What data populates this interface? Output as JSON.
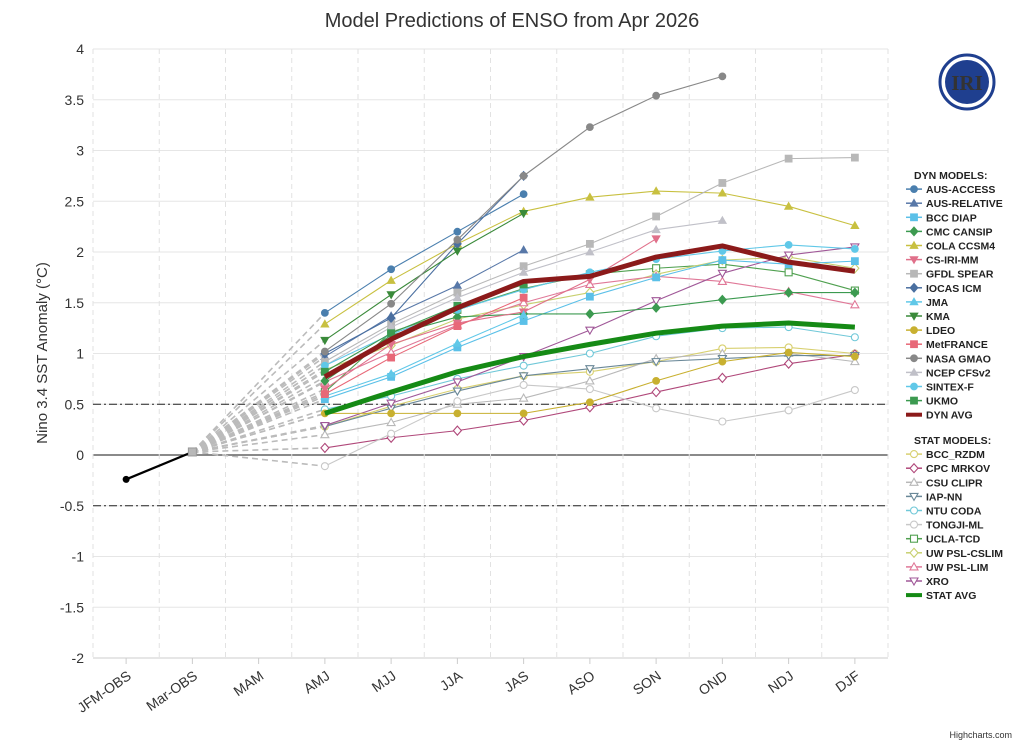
{
  "chart_data": {
    "type": "line",
    "title": "Model Predictions of ENSO from Apr 2026",
    "ylabel": "Nino 3.4 SST Anomaly (°C)",
    "xlabel": "",
    "ylim": [
      -2,
      4
    ],
    "yticks": [
      -2,
      -1.5,
      -1,
      -0.5,
      0,
      0.5,
      1,
      1.5,
      2,
      2.5,
      3,
      3.5,
      4
    ],
    "ytick_labels": [
      "-2",
      "-1.5",
      "-1",
      "-0.5",
      "0",
      "0.5",
      "1",
      "1.5",
      "2",
      "2.5",
      "3",
      "3.5",
      "4"
    ],
    "categories": [
      "JFM-OBS",
      "Mar-OBS",
      "MAM",
      "AMJ",
      "MJJ",
      "JJA",
      "JAS",
      "ASO",
      "SON",
      "OND",
      "NDJ",
      "DJF"
    ],
    "reference_lines": [
      0.5,
      -0.5
    ],
    "grid": true,
    "legend_position": "right",
    "observed": {
      "name": "",
      "color": "#000000",
      "points": [
        [
          0,
          -0.24
        ],
        [
          1,
          0.03
        ]
      ]
    },
    "dyn_header": "DYN MODELS:",
    "stat_header": "STAT MODELS:",
    "dyn_series": [
      {
        "name": "AUS-ACCESS",
        "color": "#4a7fae",
        "marker": "circle",
        "values": [
          null,
          null,
          null,
          1.4,
          1.83,
          2.2,
          2.57,
          null,
          null,
          null,
          null,
          null
        ]
      },
      {
        "name": "AUS-RELATIVE",
        "color": "#5878a8",
        "marker": "triangle",
        "values": [
          null,
          null,
          null,
          0.97,
          1.37,
          1.67,
          2.02,
          null,
          null,
          null,
          null,
          null
        ]
      },
      {
        "name": "BCC DIAP",
        "color": "#5bc0e8",
        "marker": "square",
        "values": [
          null,
          null,
          null,
          0.55,
          0.77,
          1.06,
          1.32,
          1.56,
          1.75,
          1.92,
          1.88,
          1.91
        ]
      },
      {
        "name": "CMC CANSIP",
        "color": "#3c9a50",
        "marker": "diamond",
        "values": [
          null,
          null,
          null,
          0.73,
          1.18,
          1.36,
          1.39,
          1.39,
          1.45,
          1.53,
          1.6,
          1.6
        ]
      },
      {
        "name": "COLA CCSM4",
        "color": "#c8c040",
        "marker": "triangle",
        "values": [
          null,
          null,
          null,
          1.29,
          1.72,
          2.08,
          2.4,
          2.54,
          2.6,
          2.58,
          2.45,
          2.26
        ]
      },
      {
        "name": "CS-IRI-MM",
        "color": "#e0708a",
        "marker": "triangle-down",
        "values": [
          null,
          null,
          null,
          0.65,
          1.09,
          1.3,
          1.41,
          1.73,
          2.13,
          null,
          null,
          null
        ]
      },
      {
        "name": "GFDL SPEAR",
        "color": "#b8b8b8",
        "marker": "square",
        "values": [
          null,
          null,
          null,
          0.92,
          1.29,
          1.6,
          1.86,
          2.08,
          2.35,
          2.68,
          2.92,
          2.93
        ]
      },
      {
        "name": "IOCAS ICM",
        "color": "#4a6fa0",
        "marker": "diamond",
        "values": [
          null,
          null,
          null,
          1.0,
          1.35,
          2.08,
          2.75,
          null,
          null,
          null,
          null,
          null
        ]
      },
      {
        "name": "JMA",
        "color": "#60c8e8",
        "marker": "triangle",
        "values": [
          null,
          null,
          null,
          0.58,
          0.8,
          1.1,
          1.38,
          null,
          null,
          null,
          null,
          null
        ]
      },
      {
        "name": "KMA",
        "color": "#3a8a3a",
        "marker": "triangle-down",
        "values": [
          null,
          null,
          null,
          1.13,
          1.58,
          2.01,
          2.38,
          null,
          null,
          null,
          null,
          null
        ]
      },
      {
        "name": "LDEO",
        "color": "#c8b030",
        "marker": "circle",
        "values": [
          null,
          null,
          null,
          0.41,
          0.41,
          0.41,
          0.41,
          0.52,
          0.73,
          0.92,
          1.01,
          0.97
        ]
      },
      {
        "name": "MetFRANCE",
        "color": "#e86878",
        "marker": "square",
        "values": [
          null,
          null,
          null,
          0.6,
          0.96,
          1.27,
          1.55,
          null,
          null,
          null,
          null,
          null
        ]
      },
      {
        "name": "NASA GMAO",
        "color": "#888888",
        "marker": "circle",
        "values": [
          null,
          null,
          null,
          1.02,
          1.49,
          2.12,
          2.75,
          3.23,
          3.54,
          3.73,
          null,
          null
        ]
      },
      {
        "name": "NCEP CFSv2",
        "color": "#c0c0c8",
        "marker": "triangle",
        "values": [
          null,
          null,
          null,
          0.88,
          1.26,
          1.55,
          1.8,
          2.0,
          2.22,
          2.31,
          null,
          null
        ]
      },
      {
        "name": "SINTEX-F",
        "color": "#60c8e8",
        "marker": "circle",
        "values": [
          null,
          null,
          null,
          0.88,
          1.19,
          1.43,
          1.63,
          1.8,
          1.93,
          2.01,
          2.07,
          2.03
        ]
      },
      {
        "name": "UKMO",
        "color": "#3c9a50",
        "marker": "square",
        "values": [
          null,
          null,
          null,
          0.82,
          1.2,
          1.47,
          1.68,
          null,
          null,
          null,
          null,
          null
        ]
      },
      {
        "name": "DYN AVG",
        "color": "#8b1a1a",
        "marker": "none",
        "avg": true,
        "values": [
          null,
          null,
          null,
          0.77,
          1.14,
          1.45,
          1.71,
          1.76,
          1.95,
          2.06,
          1.9,
          1.81
        ]
      }
    ],
    "stat_series": [
      {
        "name": "BCC_RZDM",
        "color": "#d8d070",
        "marker": "circle-open",
        "values": [
          null,
          null,
          null,
          0.28,
          0.48,
          0.65,
          0.78,
          0.82,
          0.92,
          1.05,
          1.06,
          1.0
        ]
      },
      {
        "name": "CPC MRKOV",
        "color": "#b0487a",
        "marker": "diamond-open",
        "values": [
          null,
          null,
          null,
          0.07,
          0.17,
          0.24,
          0.34,
          0.47,
          0.62,
          0.76,
          0.9,
          0.99
        ]
      },
      {
        "name": "CSU CLIPR",
        "color": "#b8b8b8",
        "marker": "triangle-open",
        "values": [
          null,
          null,
          null,
          0.2,
          0.32,
          0.5,
          0.56,
          0.73,
          0.95,
          1.0,
          1.0,
          0.92
        ]
      },
      {
        "name": "IAP-NN",
        "color": "#6a8898",
        "marker": "triangle-down-open",
        "values": [
          null,
          null,
          null,
          0.28,
          0.46,
          0.63,
          0.78,
          0.85,
          0.92,
          0.95,
          0.98,
          0.98
        ]
      },
      {
        "name": "NTU CODA",
        "color": "#70c8d8",
        "marker": "circle-open",
        "values": [
          null,
          null,
          null,
          0.45,
          0.58,
          0.75,
          0.88,
          1.0,
          1.17,
          1.25,
          1.26,
          1.16
        ]
      },
      {
        "name": "TONGJI-ML",
        "color": "#c8c8c8",
        "marker": "circle-open",
        "values": [
          null,
          null,
          null,
          -0.11,
          0.21,
          0.53,
          0.69,
          0.65,
          0.46,
          0.33,
          0.44,
          0.64
        ]
      },
      {
        "name": "UCLA-TCD",
        "color": "#50a050",
        "marker": "square-open",
        "values": [
          null,
          null,
          null,
          0.62,
          1.21,
          1.43,
          1.64,
          1.78,
          1.84,
          1.88,
          1.8,
          1.62
        ]
      },
      {
        "name": "UW PSL-CSLIM",
        "color": "#c8d070",
        "marker": "diamond-open",
        "values": [
          null,
          null,
          null,
          0.84,
          1.08,
          1.34,
          1.48,
          1.6,
          1.78,
          1.92,
          1.95,
          1.84
        ]
      },
      {
        "name": "UW PSL-LIM",
        "color": "#e07898",
        "marker": "triangle-open",
        "values": [
          null,
          null,
          null,
          0.72,
          1.01,
          1.28,
          1.5,
          1.68,
          1.76,
          1.71,
          1.61,
          1.48
        ]
      },
      {
        "name": "XRO",
        "color": "#a05898",
        "marker": "triangle-down-open",
        "values": [
          null,
          null,
          null,
          0.29,
          0.51,
          0.72,
          0.97,
          1.23,
          1.52,
          1.79,
          1.97,
          2.05
        ]
      },
      {
        "name": "STAT AVG",
        "color": "#158a15",
        "marker": "none",
        "avg": true,
        "values": [
          null,
          null,
          null,
          0.41,
          0.62,
          0.82,
          0.97,
          1.09,
          1.2,
          1.27,
          1.3,
          1.26
        ]
      }
    ]
  },
  "logo_text": "IRI",
  "credit": "Highcharts.com"
}
